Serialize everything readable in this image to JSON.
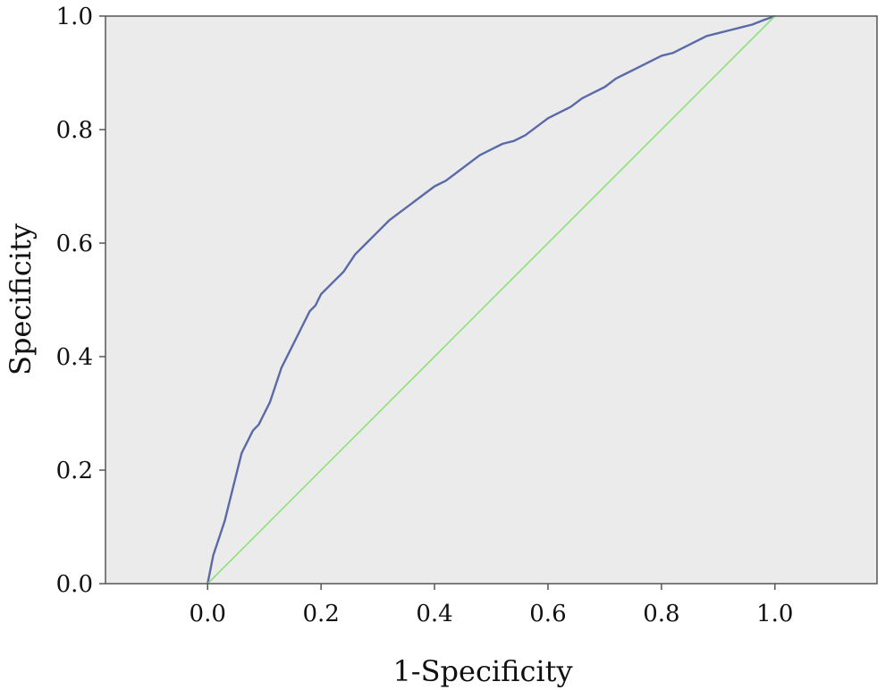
{
  "chart_data": {
    "type": "line",
    "title": "",
    "xlabel": "1-Specificity",
    "ylabel": "Specificity",
    "xlim": [
      -0.18,
      1.18
    ],
    "ylim": [
      0.0,
      1.0
    ],
    "x_ticks": [
      0.0,
      0.2,
      0.4,
      0.6,
      0.8,
      1.0
    ],
    "y_ticks": [
      0.0,
      0.2,
      0.4,
      0.6,
      0.8,
      1.0
    ],
    "x_tick_labels": [
      "0.0",
      "0.2",
      "0.4",
      "0.6",
      "0.8",
      "1.0"
    ],
    "y_tick_labels": [
      "0.0",
      "0.2",
      "0.4",
      "0.6",
      "0.8",
      "1.0"
    ],
    "grid": false,
    "background": "#ebebeb",
    "series": [
      {
        "color": "#5a6aa8",
        "x": [
          0.0,
          0.01,
          0.02,
          0.03,
          0.04,
          0.05,
          0.06,
          0.07,
          0.08,
          0.09,
          0.1,
          0.11,
          0.12,
          0.13,
          0.14,
          0.15,
          0.16,
          0.17,
          0.18,
          0.19,
          0.2,
          0.22,
          0.24,
          0.26,
          0.28,
          0.3,
          0.32,
          0.34,
          0.36,
          0.38,
          0.4,
          0.42,
          0.44,
          0.46,
          0.48,
          0.5,
          0.52,
          0.54,
          0.56,
          0.58,
          0.6,
          0.62,
          0.64,
          0.66,
          0.68,
          0.7,
          0.72,
          0.74,
          0.76,
          0.78,
          0.8,
          0.82,
          0.84,
          0.86,
          0.88,
          0.9,
          0.92,
          0.94,
          0.96,
          0.98,
          1.0
        ],
        "y": [
          0.0,
          0.05,
          0.08,
          0.11,
          0.15,
          0.19,
          0.23,
          0.25,
          0.27,
          0.28,
          0.3,
          0.32,
          0.35,
          0.38,
          0.4,
          0.42,
          0.44,
          0.46,
          0.48,
          0.49,
          0.51,
          0.53,
          0.55,
          0.58,
          0.6,
          0.62,
          0.64,
          0.655,
          0.67,
          0.685,
          0.7,
          0.71,
          0.725,
          0.74,
          0.755,
          0.765,
          0.775,
          0.78,
          0.79,
          0.805,
          0.82,
          0.83,
          0.84,
          0.855,
          0.865,
          0.875,
          0.89,
          0.9,
          0.91,
          0.92,
          0.93,
          0.935,
          0.945,
          0.955,
          0.965,
          0.97,
          0.975,
          0.98,
          0.985,
          0.993,
          1.0
        ]
      },
      {
        "color": "#8ee07a",
        "x": [
          0.0,
          1.0
        ],
        "y": [
          0.0,
          1.0
        ]
      }
    ]
  }
}
